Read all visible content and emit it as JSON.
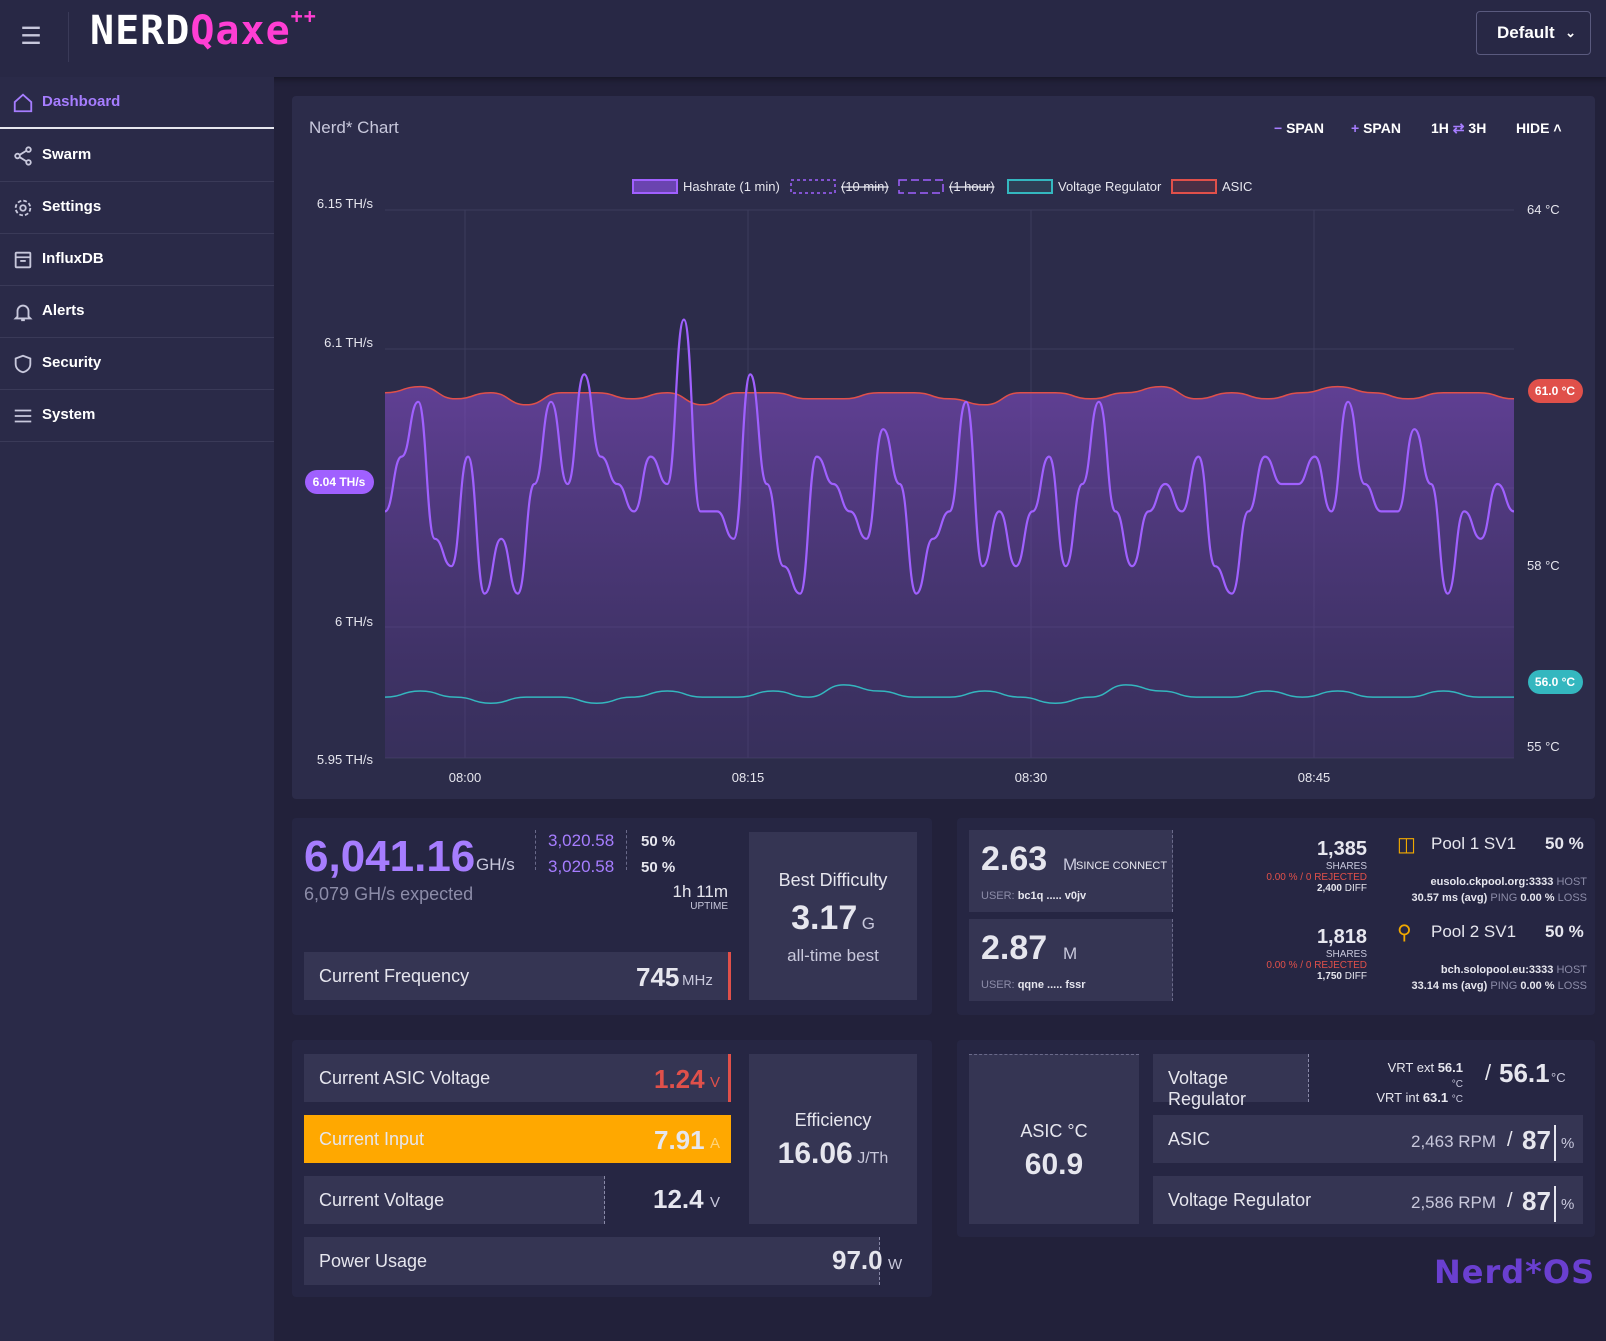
{
  "header": {
    "brand_main": "NERD",
    "brand_q": "Qaxe",
    "brand_sup": "++",
    "profile": "Default"
  },
  "sidebar": {
    "items": [
      {
        "label": "Dashboard",
        "icon": "home-icon"
      },
      {
        "label": "Swarm",
        "icon": "share-icon"
      },
      {
        "label": "Settings",
        "icon": "gear-icon"
      },
      {
        "label": "InfluxDB",
        "icon": "database-icon"
      },
      {
        "label": "Alerts",
        "icon": "bell-icon"
      },
      {
        "label": "Security",
        "icon": "shield-icon"
      },
      {
        "label": "System",
        "icon": "list-icon"
      }
    ]
  },
  "chart": {
    "title": "Nerd* Chart",
    "btn_minus": "SPAN",
    "btn_plus": "SPAN",
    "btn_range_a": "1H",
    "btn_range_b": "3H",
    "btn_hide": "HIDE",
    "legend": [
      "Hashrate (1 min)",
      "(10 min)",
      "(1 hour)",
      "Voltage Regulator",
      "ASIC"
    ],
    "current_hashrate_badge": "6.04 TH/s",
    "asic_badge": "61.0 °C",
    "vr_badge": "56.0 °C"
  },
  "chart_data": {
    "type": "line",
    "x_ticks": [
      "08:00",
      "08:15",
      "08:30",
      "08:45"
    ],
    "y_left_ticks": [
      "6.15 TH/s",
      "6.1 TH/s",
      "6 TH/s",
      "5.95 TH/s"
    ],
    "y_left_range": [
      5.95,
      6.15
    ],
    "y_right_ticks": [
      "64 °C",
      "61.0 °C",
      "58 °C",
      "56.0 °C",
      "55 °C"
    ],
    "y_right_range": [
      55,
      64
    ],
    "series": [
      {
        "name": "Hashrate (1 min)",
        "color": "#a060ff",
        "values": [
          6.04,
          6.06,
          6.08,
          6.03,
          6.02,
          6.06,
          6.01,
          6.03,
          6.01,
          6.05,
          6.08,
          6.05,
          6.09,
          6.06,
          6.05,
          6.04,
          6.06,
          6.05,
          6.11,
          6.04,
          6.04,
          6.03,
          6.09,
          6.05,
          6.02,
          6.01,
          6.06,
          6.05,
          6.04,
          6.03,
          6.07,
          6.05,
          6.01,
          6.03,
          6.04,
          6.08,
          6.02,
          6.04,
          6.02,
          6.04,
          6.06,
          6.02,
          6.05,
          6.08,
          6.04,
          6.02,
          6.04,
          6.05,
          6.04,
          6.06,
          6.02,
          6.01,
          6.04,
          6.06,
          6.05,
          6.05,
          6.06,
          6.04,
          6.08,
          6.05,
          6.04,
          6.04,
          6.07,
          6.05,
          6.01,
          6.04,
          6.03,
          6.05,
          6.04
        ]
      },
      {
        "name": "Voltage Regulator",
        "color": "#34b7bf",
        "values": [
          56.0,
          56.1,
          56.0,
          55.9,
          56.0,
          56.0,
          55.9,
          56.0,
          56.1,
          56.0,
          56.0,
          56.1,
          56.0,
          56.2,
          56.1,
          56.0,
          56.0,
          56.1,
          56.0,
          55.9,
          56.0,
          56.2,
          56.1,
          56.0,
          56.0,
          56.1,
          56.0,
          56.1,
          56.0,
          56.0,
          56.1,
          56.0,
          56.0
        ]
      },
      {
        "name": "ASIC",
        "color": "#e0504a",
        "values": [
          61.0,
          61.1,
          60.9,
          61.0,
          60.8,
          61.0,
          61.0,
          60.9,
          61.0,
          60.8,
          61.0,
          61.0,
          60.9,
          60.9,
          61.0,
          61.0,
          60.9,
          60.8,
          61.0,
          61.0,
          60.9,
          61.0,
          61.1,
          60.9,
          61.0,
          60.9,
          61.0,
          61.1,
          61.0,
          60.9,
          61.0,
          61.0,
          60.9
        ]
      }
    ]
  },
  "stats": {
    "hashrate": "6,041.16",
    "hashrate_unit": "GH/s",
    "expected": "6,079",
    "expected_unit": "GH/s",
    "expected_label": "expected",
    "asic1": "3,020.58",
    "asic1_pct": "50 %",
    "asic2": "3,020.58",
    "asic2_pct": "50 %",
    "uptime": "1h 11m",
    "uptime_label": "UPTIME",
    "freq_label": "Current Frequency",
    "freq_value": "745",
    "freq_unit": "MHz",
    "best_label": "Best Difficulty",
    "best_value": "3.17",
    "best_unit": "G",
    "best_sub": "all-time best",
    "diff1": "2.63",
    "diff1_unit": "M",
    "diff1_label": "SINCE CONNECT",
    "user1_label": "USER:",
    "user1": "bc1q ..... v0jv",
    "diff2": "2.87",
    "diff2_unit": "M",
    "user2_label": "USER:",
    "user2": "qqne ..... fssr",
    "pool1": {
      "shares": "1,385",
      "shares_label": "SHARES",
      "rejected_pct": "0.00 % / 0",
      "rejected_label": "REJECTED",
      "diff": "2,400",
      "diff_label": "DIFF",
      "name": "Pool 1 SV1",
      "pct": "50 %",
      "host": "eusolo.ckpool.org:3333",
      "host_label": "HOST",
      "ping": "30.57 ms (avg)",
      "ping_label": "PING",
      "loss": "0.00 %",
      "loss_label": "LOSS"
    },
    "pool2": {
      "shares": "1,818",
      "shares_label": "SHARES",
      "rejected_pct": "0.00 % / 0",
      "rejected_label": "REJECTED",
      "diff": "1,750",
      "diff_label": "DIFF",
      "name": "Pool 2 SV1",
      "pct": "50 %",
      "host": "bch.solopool.eu:3333",
      "host_label": "HOST",
      "ping": "33.14 ms (avg)",
      "ping_label": "PING",
      "loss": "0.00 %",
      "loss_label": "LOSS"
    },
    "asic_v_label": "Current ASIC Voltage",
    "asic_v_value": "1.24",
    "asic_v_unit": "V",
    "input_label": "Current Input",
    "input_value": "7.91",
    "input_unit": "A",
    "voltage_label": "Current Voltage",
    "voltage_value": "12.4",
    "voltage_unit": "V",
    "power_label": "Power Usage",
    "power_value": "97.0",
    "power_unit": "W",
    "eff_label": "Efficiency",
    "eff_value": "16.06",
    "eff_unit": "J/Th",
    "asic_temp_label": "ASIC °C",
    "asic_temp_value": "60.9",
    "vr_label": "Voltage Regulator",
    "vrt_ext_label": "VRT ext",
    "vrt_ext": "56.1",
    "vrt_int_label": "VRT int",
    "vrt_int": "63.1",
    "deg": "°C",
    "vr_temp": "56.1",
    "fan1_label": "ASIC",
    "fan1_rpm": "2,463",
    "fan1_pct": "87",
    "fan2_label": "Voltage Regulator",
    "fan2_rpm": "2,586",
    "fan2_pct": "87",
    "rpm": "RPM",
    "pct": "%"
  },
  "footer_brand": "Nerd*OS",
  "colors": {
    "accent": "#a67dff",
    "highlight": "#ffa800",
    "danger": "#e0504a",
    "teal": "#34b7bf"
  }
}
